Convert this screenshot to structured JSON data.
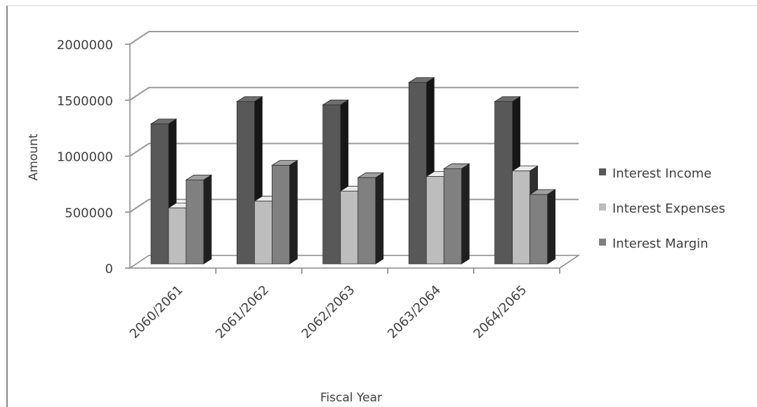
{
  "chart_data": {
    "type": "bar",
    "title": "",
    "xlabel": "Fiscal Year",
    "ylabel": "Amount",
    "ylim": [
      0,
      2000000
    ],
    "yticks": [
      0,
      500000,
      1000000,
      1500000,
      2000000
    ],
    "ytick_labels": [
      "0",
      "500000",
      "1000000",
      "1500000",
      "2000000"
    ],
    "categories": [
      "2060/2061",
      "2061/2062",
      "2062/2063",
      "2063/2064",
      "2064/2065"
    ],
    "series": [
      {
        "name": "Interest Income",
        "values": [
          1250000,
          1450000,
          1420000,
          1620000,
          1450000
        ]
      },
      {
        "name": "Interest Expenses",
        "values": [
          500000,
          560000,
          650000,
          780000,
          830000
        ]
      },
      {
        "name": "Interest Margin",
        "values": [
          750000,
          880000,
          770000,
          850000,
          620000
        ]
      }
    ],
    "colors": {
      "Interest Income": "#585858",
      "Interest Expenses": "#bdbdbd",
      "Interest Margin": "#808080"
    },
    "grid": true,
    "legend_position": "right",
    "style": "3d-clustered-column"
  }
}
